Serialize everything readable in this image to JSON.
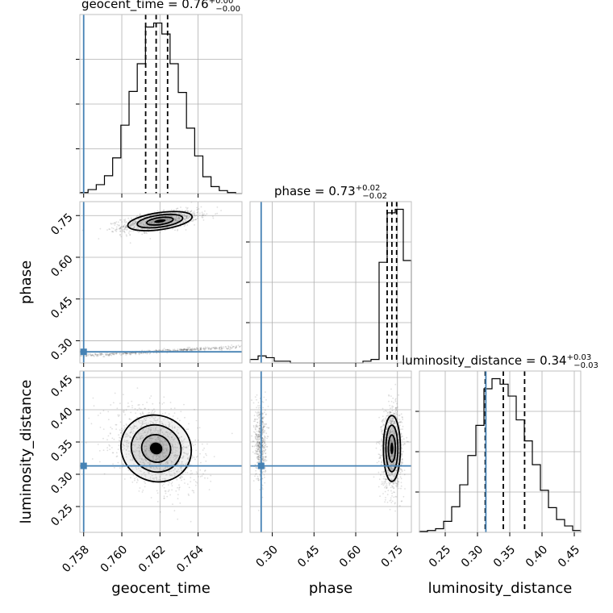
{
  "chart_data": {
    "type": "corner",
    "parameters": [
      {
        "name": "geocent_time",
        "label": "geocent_time",
        "range": [
          0.7578,
          0.7663
        ],
        "ticks": [
          0.758,
          0.76,
          0.762,
          0.764
        ],
        "tick_labels": [
          "0.758",
          "0.760",
          "0.762",
          "0.764"
        ],
        "title": {
          "text": "geocent_time = 0.76",
          "sup": "+0.00",
          "sub": "−0.00"
        },
        "truth": 0.758,
        "quantiles": [
          0.76125,
          0.7618,
          0.7624
        ]
      },
      {
        "name": "phase",
        "label": "phase",
        "range": [
          0.22,
          0.8
        ],
        "ticks": [
          0.3,
          0.45,
          0.6,
          0.75
        ],
        "tick_labels": [
          "0.30",
          "0.45",
          "0.60",
          "0.75"
        ],
        "title": {
          "text": "phase = 0.73",
          "sup": "+0.02",
          "sub": "−0.02"
        },
        "truth": 0.26,
        "quantiles": [
          0.713,
          0.73,
          0.747
        ]
      },
      {
        "name": "luminosity_distance",
        "label": "luminosity_distance",
        "range": [
          0.21,
          0.46
        ],
        "ticks": [
          0.25,
          0.3,
          0.35,
          0.4,
          0.45
        ],
        "tick_labels": [
          "0.25",
          "0.30",
          "0.35",
          "0.40",
          "0.45"
        ],
        "ticks_2d": [
          0.25,
          0.3,
          0.35,
          0.4,
          0.45
        ],
        "tick_labels_2d": [
          "0.25",
          "0.30",
          "0.35",
          "0.40",
          "0.45"
        ],
        "title": {
          "text": "luminosity_distance = 0.34",
          "sup": "+0.03",
          "sub": "−0.03"
        },
        "truth": 0.313,
        "quantiles": [
          0.312,
          0.34,
          0.373
        ]
      }
    ],
    "histograms": [
      {
        "param": "geocent_time",
        "bin_edges": [
          0.7578,
          0.75823,
          0.75866,
          0.75909,
          0.75952,
          0.75995,
          0.76038,
          0.76081,
          0.76124,
          0.76167,
          0.7621,
          0.76253,
          0.76296,
          0.76339,
          0.76382,
          0.76425,
          0.76468,
          0.76511,
          0.76554,
          0.76597,
          0.7663
        ],
        "counts": [
          1,
          4,
          9,
          18,
          36,
          69,
          103,
          131,
          168,
          172,
          161,
          131,
          102,
          66,
          38,
          17,
          7,
          3,
          1,
          0
        ]
      },
      {
        "param": "phase",
        "bin_edges": [
          0.22,
          0.249,
          0.278,
          0.307,
          0.336,
          0.365,
          0.394,
          0.423,
          0.452,
          0.481,
          0.51,
          0.539,
          0.568,
          0.597,
          0.626,
          0.655,
          0.684,
          0.713,
          0.742,
          0.771,
          0.8
        ],
        "counts": [
          2,
          4,
          3,
          1,
          1,
          0,
          0,
          0,
          0,
          0,
          0,
          0,
          0,
          0,
          1,
          2,
          57,
          85,
          87,
          58
        ]
      },
      {
        "param": "luminosity_distance",
        "bin_edges": [
          0.21,
          0.2225,
          0.235,
          0.2475,
          0.26,
          0.2725,
          0.285,
          0.2975,
          0.31,
          0.3225,
          0.335,
          0.3475,
          0.36,
          0.3725,
          0.385,
          0.3975,
          0.41,
          0.4225,
          0.435,
          0.4475,
          0.46
        ],
        "counts": [
          1,
          2,
          4,
          12,
          28,
          52,
          84,
          117,
          157,
          168,
          162,
          149,
          123,
          100,
          74,
          46,
          27,
          14,
          7,
          2
        ]
      }
    ],
    "pairs": [
      {
        "x": "geocent_time",
        "y": "phase",
        "modes": [
          {
            "center": [
              0.762,
              0.73
            ],
            "sigma": [
              0.001,
              0.018
            ]
          },
          {
            "center": [
              0.762,
              0.262
            ],
            "sigma": [
              0.0025,
              0.01
            ]
          }
        ]
      },
      {
        "x": "geocent_time",
        "y": "luminosity_distance",
        "modes": [
          {
            "center": [
              0.7618,
              0.34
            ],
            "sigma": [
              0.0011,
              0.03
            ]
          }
        ]
      },
      {
        "x": "phase",
        "y": "luminosity_distance",
        "modes": [
          {
            "center": [
              0.73,
              0.34
            ],
            "sigma": [
              0.018,
              0.03
            ]
          },
          {
            "center": [
              0.258,
              0.35
            ],
            "sigma": [
              0.01,
              0.03
            ]
          }
        ]
      }
    ]
  }
}
